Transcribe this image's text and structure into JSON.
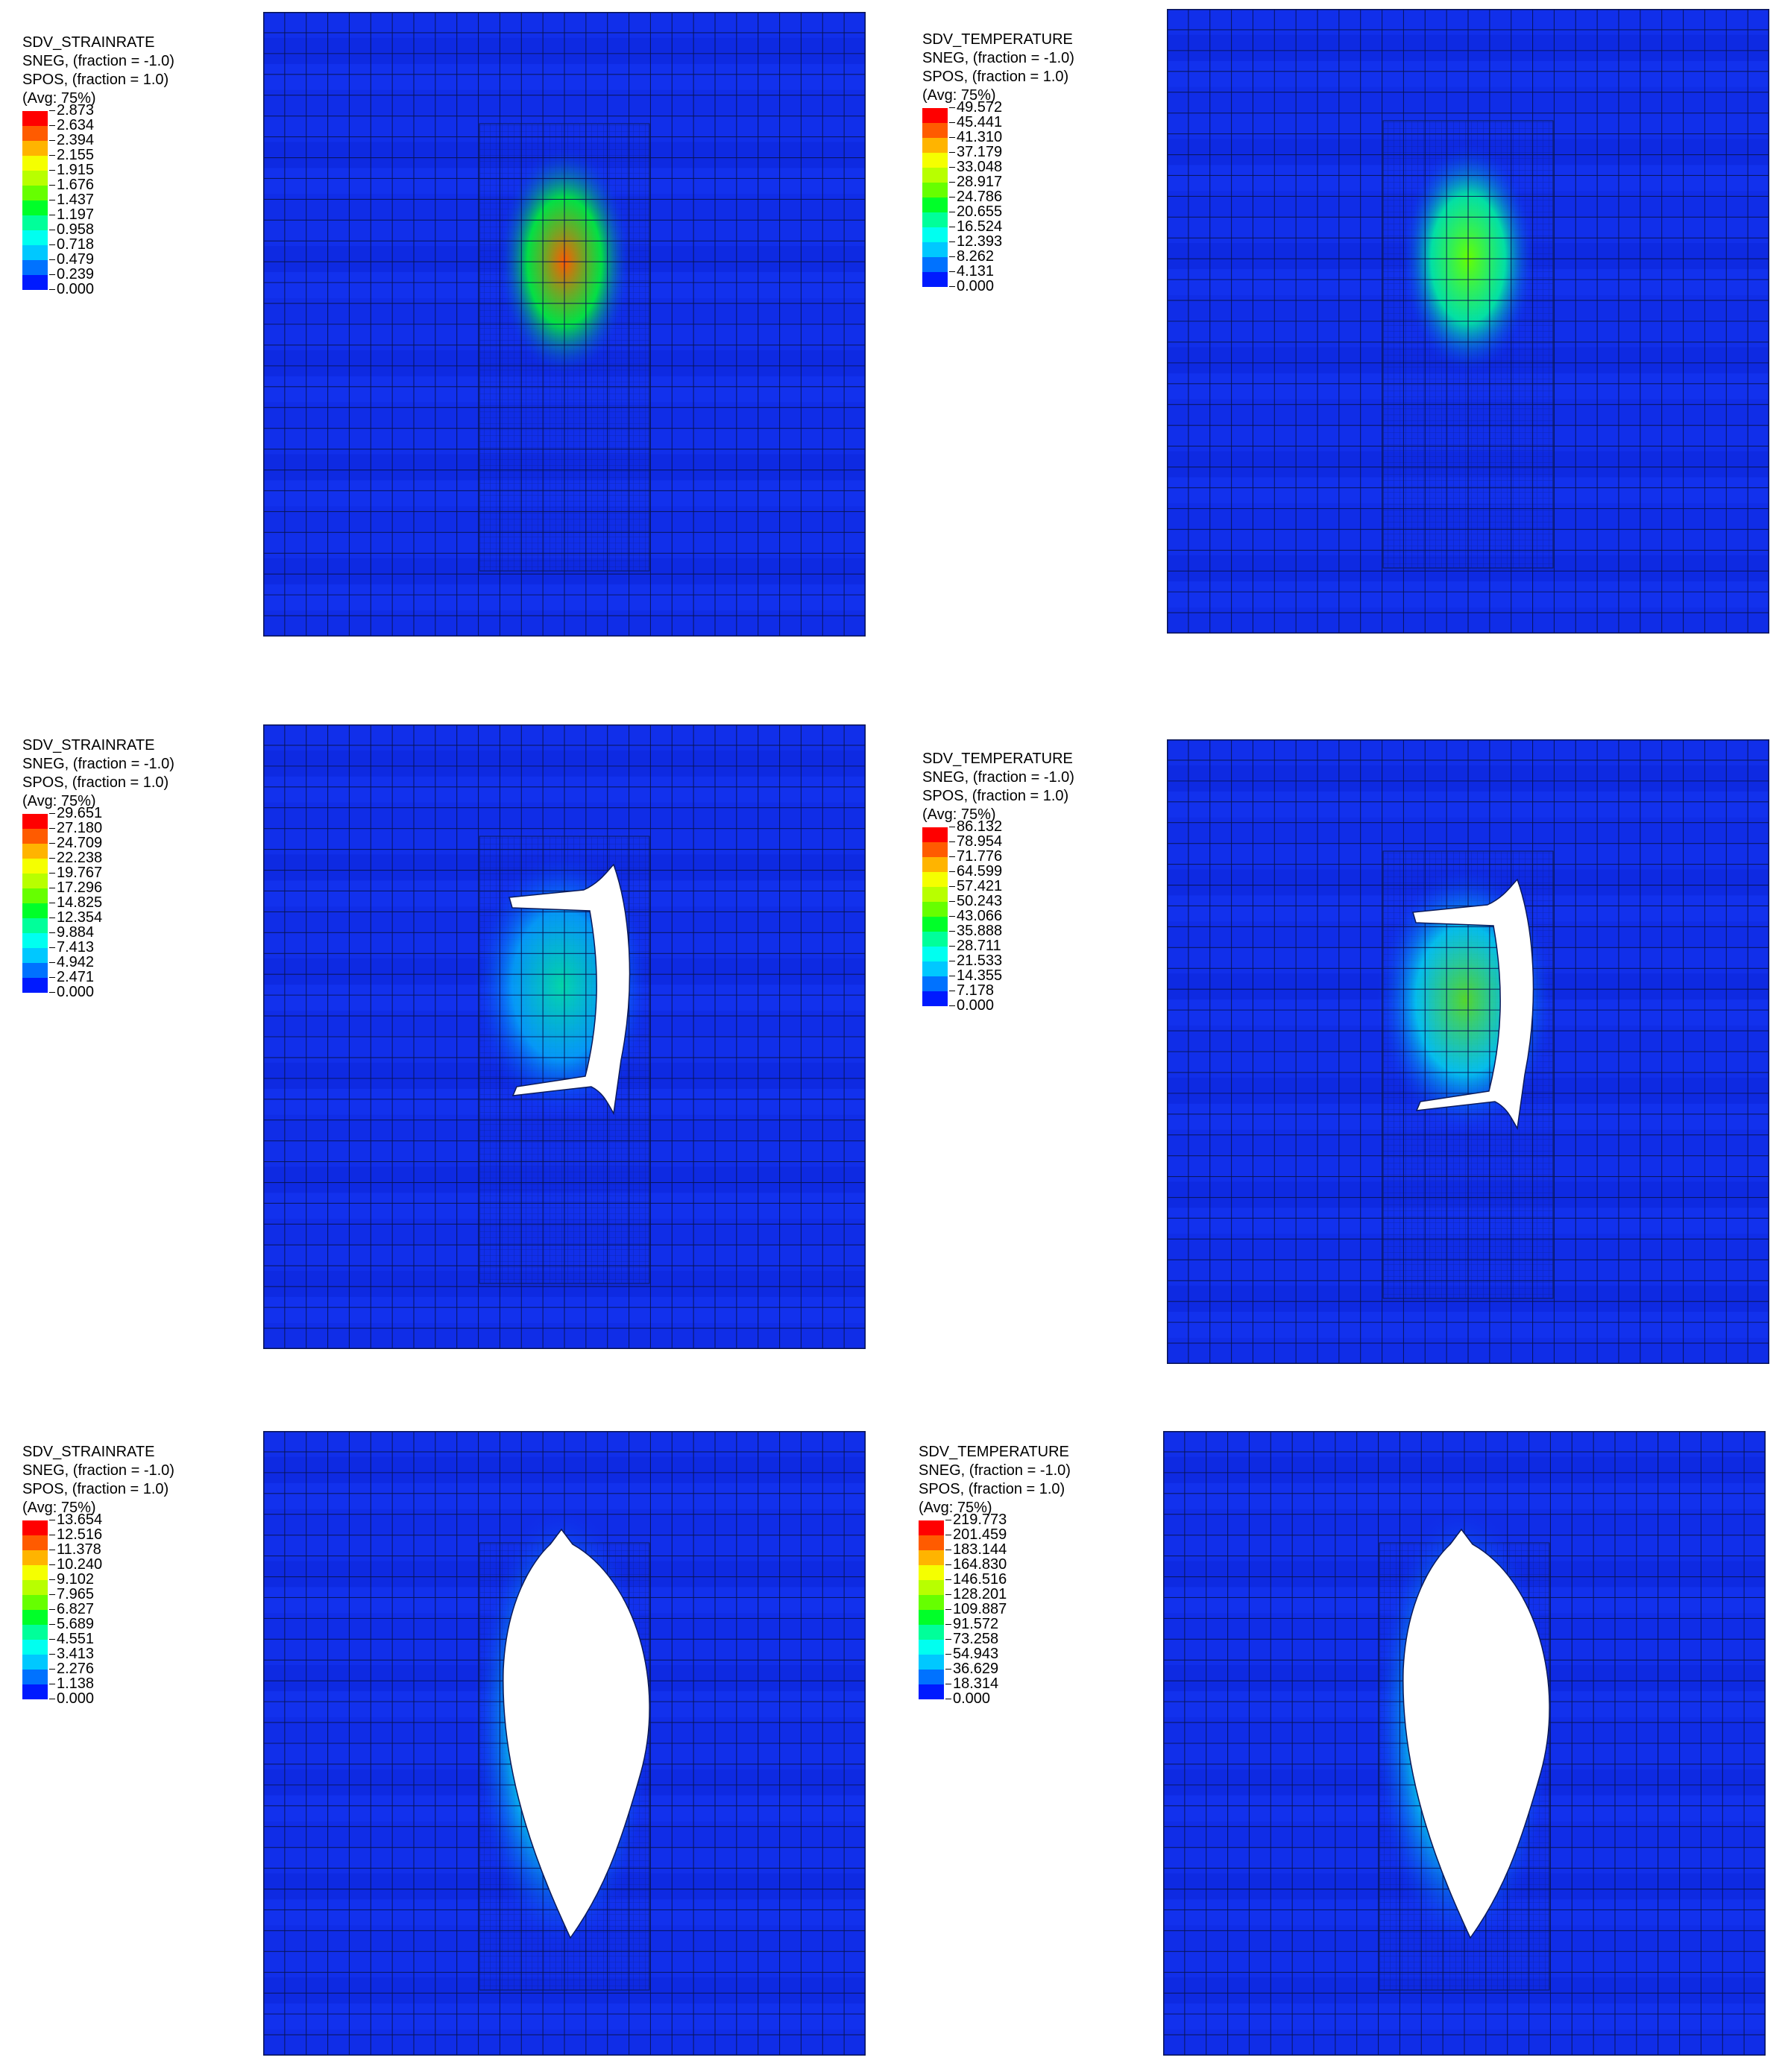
{
  "colormap": [
    "#ff0000",
    "#ff5b00",
    "#ffb400",
    "#f5ff00",
    "#b8ff00",
    "#66ff00",
    "#00ff29",
    "#00ff9a",
    "#00fff0",
    "#00c8ff",
    "#0072ff",
    "#001aff"
  ],
  "panels": [
    {
      "id": "strainrate-1",
      "legend": {
        "variable": "SDV_STRAINRATE",
        "sneg": "SNEG, (fraction = -1.0)",
        "spos": "SPOS, (fraction = 1.0)",
        "avg": "(Avg: 75%)",
        "ticks": [
          "2.873",
          "2.634",
          "2.394",
          "2.155",
          "1.915",
          "1.676",
          "1.437",
          "1.197",
          "0.958",
          "0.718",
          "0.479",
          "0.239",
          "0.000"
        ]
      },
      "peak_level": 0.87,
      "hole": "none"
    },
    {
      "id": "temperature-1",
      "legend": {
        "variable": "SDV_TEMPERATURE",
        "sneg": "SNEG, (fraction = -1.0)",
        "spos": "SPOS, (fraction = 1.0)",
        "avg": "(Avg: 75%)",
        "ticks": [
          "49.572",
          "45.441",
          "41.310",
          "37.179",
          "33.048",
          "28.917",
          "24.786",
          "20.655",
          "16.524",
          "12.393",
          "8.262",
          "4.131",
          "0.000"
        ]
      },
      "peak_level": 0.58,
      "hole": "none"
    },
    {
      "id": "strainrate-2",
      "legend": {
        "variable": "SDV_STRAINRATE",
        "sneg": "SNEG, (fraction = -1.0)",
        "spos": "SPOS, (fraction = 1.0)",
        "avg": "(Avg: 75%)",
        "ticks": [
          "29.651",
          "27.180",
          "24.709",
          "22.238",
          "19.767",
          "17.296",
          "14.825",
          "12.354",
          "9.884",
          "7.413",
          "4.942",
          "2.471",
          "0.000"
        ]
      },
      "peak_level": 0.35,
      "hole": "slit"
    },
    {
      "id": "temperature-2",
      "legend": {
        "variable": "SDV_TEMPERATURE",
        "sneg": "SNEG, (fraction = -1.0)",
        "spos": "SPOS, (fraction = 1.0)",
        "avg": "(Avg: 75%)",
        "ticks": [
          "86.132",
          "78.954",
          "71.776",
          "64.599",
          "57.421",
          "50.243",
          "43.066",
          "35.888",
          "28.711",
          "21.533",
          "14.355",
          "7.178",
          "0.000"
        ]
      },
      "peak_level": 0.55,
      "hole": "slit"
    },
    {
      "id": "strainrate-3",
      "legend": {
        "variable": "SDV_STRAINRATE",
        "sneg": "SNEG, (fraction = -1.0)",
        "spos": "SPOS, (fraction = 1.0)",
        "avg": "(Avg: 75%)",
        "ticks": [
          "13.654",
          "12.516",
          "11.378",
          "10.240",
          "9.102",
          "7.965",
          "6.827",
          "5.689",
          "4.551",
          "3.413",
          "2.276",
          "1.138",
          "0.000"
        ]
      },
      "peak_level": 0.45,
      "hole": "large"
    },
    {
      "id": "temperature-3",
      "legend": {
        "variable": "SDV_TEMPERATURE",
        "sneg": "SNEG, (fraction = -1.0)",
        "spos": "SPOS, (fraction = 1.0)",
        "avg": "(Avg: 75%)",
        "ticks": [
          "219.773",
          "201.459",
          "183.144",
          "164.830",
          "146.516",
          "128.201",
          "109.887",
          "91.572",
          "73.258",
          "54.943",
          "36.629",
          "18.314",
          "0.000"
        ]
      },
      "peak_level": 0.45,
      "hole": "large"
    }
  ]
}
